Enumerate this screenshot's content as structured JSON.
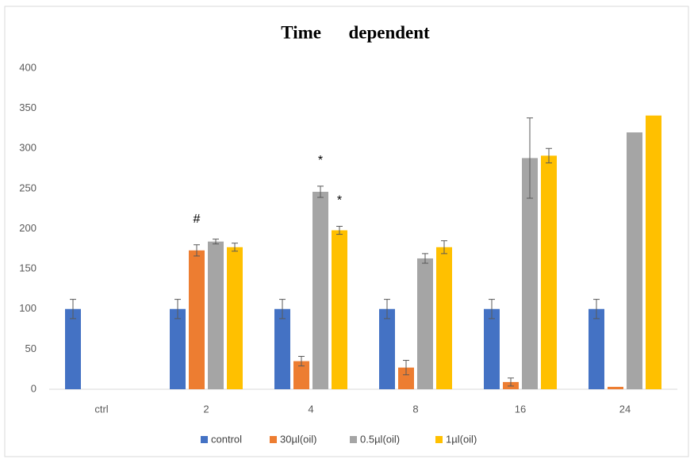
{
  "chart_data": {
    "type": "bar",
    "title": "Time      dependent",
    "categories": [
      "ctrl",
      "2",
      "4",
      "8",
      "16",
      "24"
    ],
    "series": [
      {
        "name": "control",
        "color": "#4472c4",
        "values": [
          100,
          100,
          100,
          100,
          100,
          100
        ],
        "errors": [
          12,
          12,
          12,
          12,
          12,
          12
        ]
      },
      {
        "name": "30µl(oil)",
        "color": "#ed7d31",
        "values": [
          null,
          173,
          35,
          27,
          9,
          3
        ],
        "errors": [
          null,
          7,
          6,
          9,
          5,
          null
        ]
      },
      {
        "name": "0.5µl(oil)",
        "color": "#a5a5a5",
        "values": [
          null,
          184,
          246,
          163,
          288,
          320
        ],
        "errors": [
          null,
          3,
          7,
          6,
          50,
          null
        ]
      },
      {
        "name": "1µl(oil)",
        "color": "#ffc000",
        "values": [
          null,
          177,
          198,
          177,
          291,
          341
        ],
        "errors": [
          null,
          5,
          5,
          8,
          9,
          null
        ]
      }
    ],
    "annotations": [
      {
        "text": "#",
        "category": 1,
        "series": 1
      },
      {
        "text": "*",
        "category": 2,
        "series": 2
      },
      {
        "text": "*",
        "category": 2,
        "series": 3
      }
    ],
    "ylim": [
      0,
      400
    ],
    "yticks": [
      0,
      50,
      100,
      150,
      200,
      250,
      300,
      350,
      400
    ],
    "grid": false,
    "legend": "bottom"
  }
}
